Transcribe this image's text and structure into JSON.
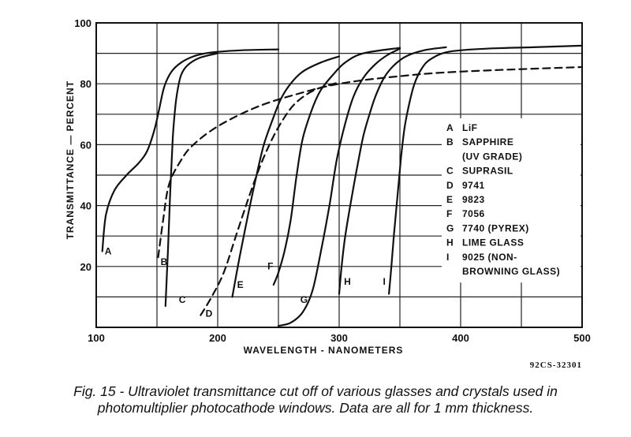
{
  "chart_data": {
    "type": "line",
    "xlabel": "WAVELENGTH - NANOMETERS",
    "ylabel": "TRANSMITTANCE — PERCENT",
    "xlim": [
      100,
      500
    ],
    "ylim": [
      0,
      100
    ],
    "x_ticks": [
      100,
      200,
      300,
      400,
      500
    ],
    "y_ticks": [
      20,
      40,
      60,
      80,
      100
    ],
    "grid": true,
    "figure_id": "92CS-32301",
    "legend": [
      {
        "key": "A",
        "lines": [
          "LiF"
        ]
      },
      {
        "key": "B",
        "lines": [
          "SAPPHIRE",
          "(UV GRADE)"
        ]
      },
      {
        "key": "C",
        "lines": [
          "SUPRASIL"
        ]
      },
      {
        "key": "D",
        "lines": [
          "9741"
        ]
      },
      {
        "key": "E",
        "lines": [
          "9823"
        ]
      },
      {
        "key": "F",
        "lines": [
          "7056"
        ]
      },
      {
        "key": "G",
        "lines": [
          "7740 (PYREX)"
        ]
      },
      {
        "key": "H",
        "lines": [
          "LIME GLASS"
        ]
      },
      {
        "key": "I",
        "lines": [
          "9025 (NON-",
          "BROWNING GLASS)"
        ]
      }
    ],
    "series": [
      {
        "name": "A",
        "dashed": false,
        "label_at": [
          107,
          24
        ],
        "x": [
          105,
          108,
          115,
          125,
          135,
          142,
          148,
          152,
          156,
          162,
          170,
          180,
          190,
          200,
          220,
          250
        ],
        "y": [
          25,
          37,
          45,
          50,
          54,
          58,
          65,
          72,
          79,
          84,
          87,
          89,
          90,
          90.5,
          91,
          91.3
        ]
      },
      {
        "name": "B",
        "dashed": true,
        "label_at": [
          153,
          20.5
        ],
        "x": [
          151,
          155,
          160,
          170,
          180,
          200,
          230,
          260,
          300,
          350,
          400,
          500
        ],
        "y": [
          23,
          35,
          47,
          55,
          60,
          66,
          72,
          76,
          80,
          82.5,
          84,
          85.5
        ]
      },
      {
        "name": "C",
        "dashed": false,
        "label_at": [
          168,
          8
        ],
        "x": [
          157,
          159,
          161,
          163,
          165,
          167,
          170,
          175,
          185,
          200
        ],
        "y": [
          7,
          25,
          45,
          62,
          72,
          78,
          83,
          86,
          88.5,
          90
        ]
      },
      {
        "name": "D",
        "dashed": true,
        "label_at": [
          190,
          3.5
        ],
        "x": [
          186,
          195,
          205,
          215,
          225,
          235,
          245,
          255,
          265,
          280,
          300
        ],
        "y": [
          4,
          10,
          18,
          30,
          42,
          53,
          62,
          69,
          74,
          78,
          80.5
        ]
      },
      {
        "name": "E",
        "dashed": false,
        "label_at": [
          216,
          13
        ],
        "x": [
          212,
          218,
          225,
          232,
          238,
          245,
          252,
          260,
          270,
          285,
          300
        ],
        "y": [
          10,
          23,
          37,
          50,
          60,
          68,
          75,
          80,
          84,
          87,
          89
        ]
      },
      {
        "name": "F",
        "dashed": false,
        "label_at": [
          241,
          19
        ],
        "x": [
          246,
          250,
          255,
          260,
          265,
          270,
          278,
          285,
          295,
          305,
          320,
          350
        ],
        "y": [
          14,
          18,
          25,
          35,
          50,
          62,
          72,
          78,
          83,
          87,
          90,
          91.8
        ]
      },
      {
        "name": "G",
        "dashed": false,
        "label_at": [
          268,
          8
        ],
        "x": [
          250,
          260,
          270,
          278,
          285,
          292,
          298,
          305,
          312,
          320,
          330,
          340,
          350
        ],
        "y": [
          0.5,
          1.5,
          5,
          12,
          25,
          40,
          55,
          67,
          76,
          82,
          86.5,
          89.5,
          91.5
        ]
      },
      {
        "name": "H",
        "dashed": false,
        "label_at": [
          304,
          14
        ],
        "x": [
          300,
          302,
          305,
          310,
          315,
          320,
          325,
          330,
          337,
          345,
          355,
          370,
          388
        ],
        "y": [
          11,
          20,
          30,
          42,
          53,
          63,
          70,
          76,
          82,
          86,
          89,
          91,
          92
        ]
      },
      {
        "name": "I",
        "dashed": false,
        "label_at": [
          336,
          14
        ],
        "x": [
          341,
          343,
          345,
          348,
          351,
          354,
          358,
          362,
          368,
          375,
          390,
          420,
          460,
          500
        ],
        "y": [
          11,
          20,
          30,
          43,
          56,
          66,
          74,
          80,
          85,
          88,
          90.5,
          91.5,
          92,
          92.5
        ]
      }
    ]
  },
  "caption": {
    "line1": "Fig. 15 - Ultraviolet transmittance cut off of various glasses and crystals used in",
    "line2": "photomultiplier photocathode windows. Data are all for 1 mm thickness."
  }
}
